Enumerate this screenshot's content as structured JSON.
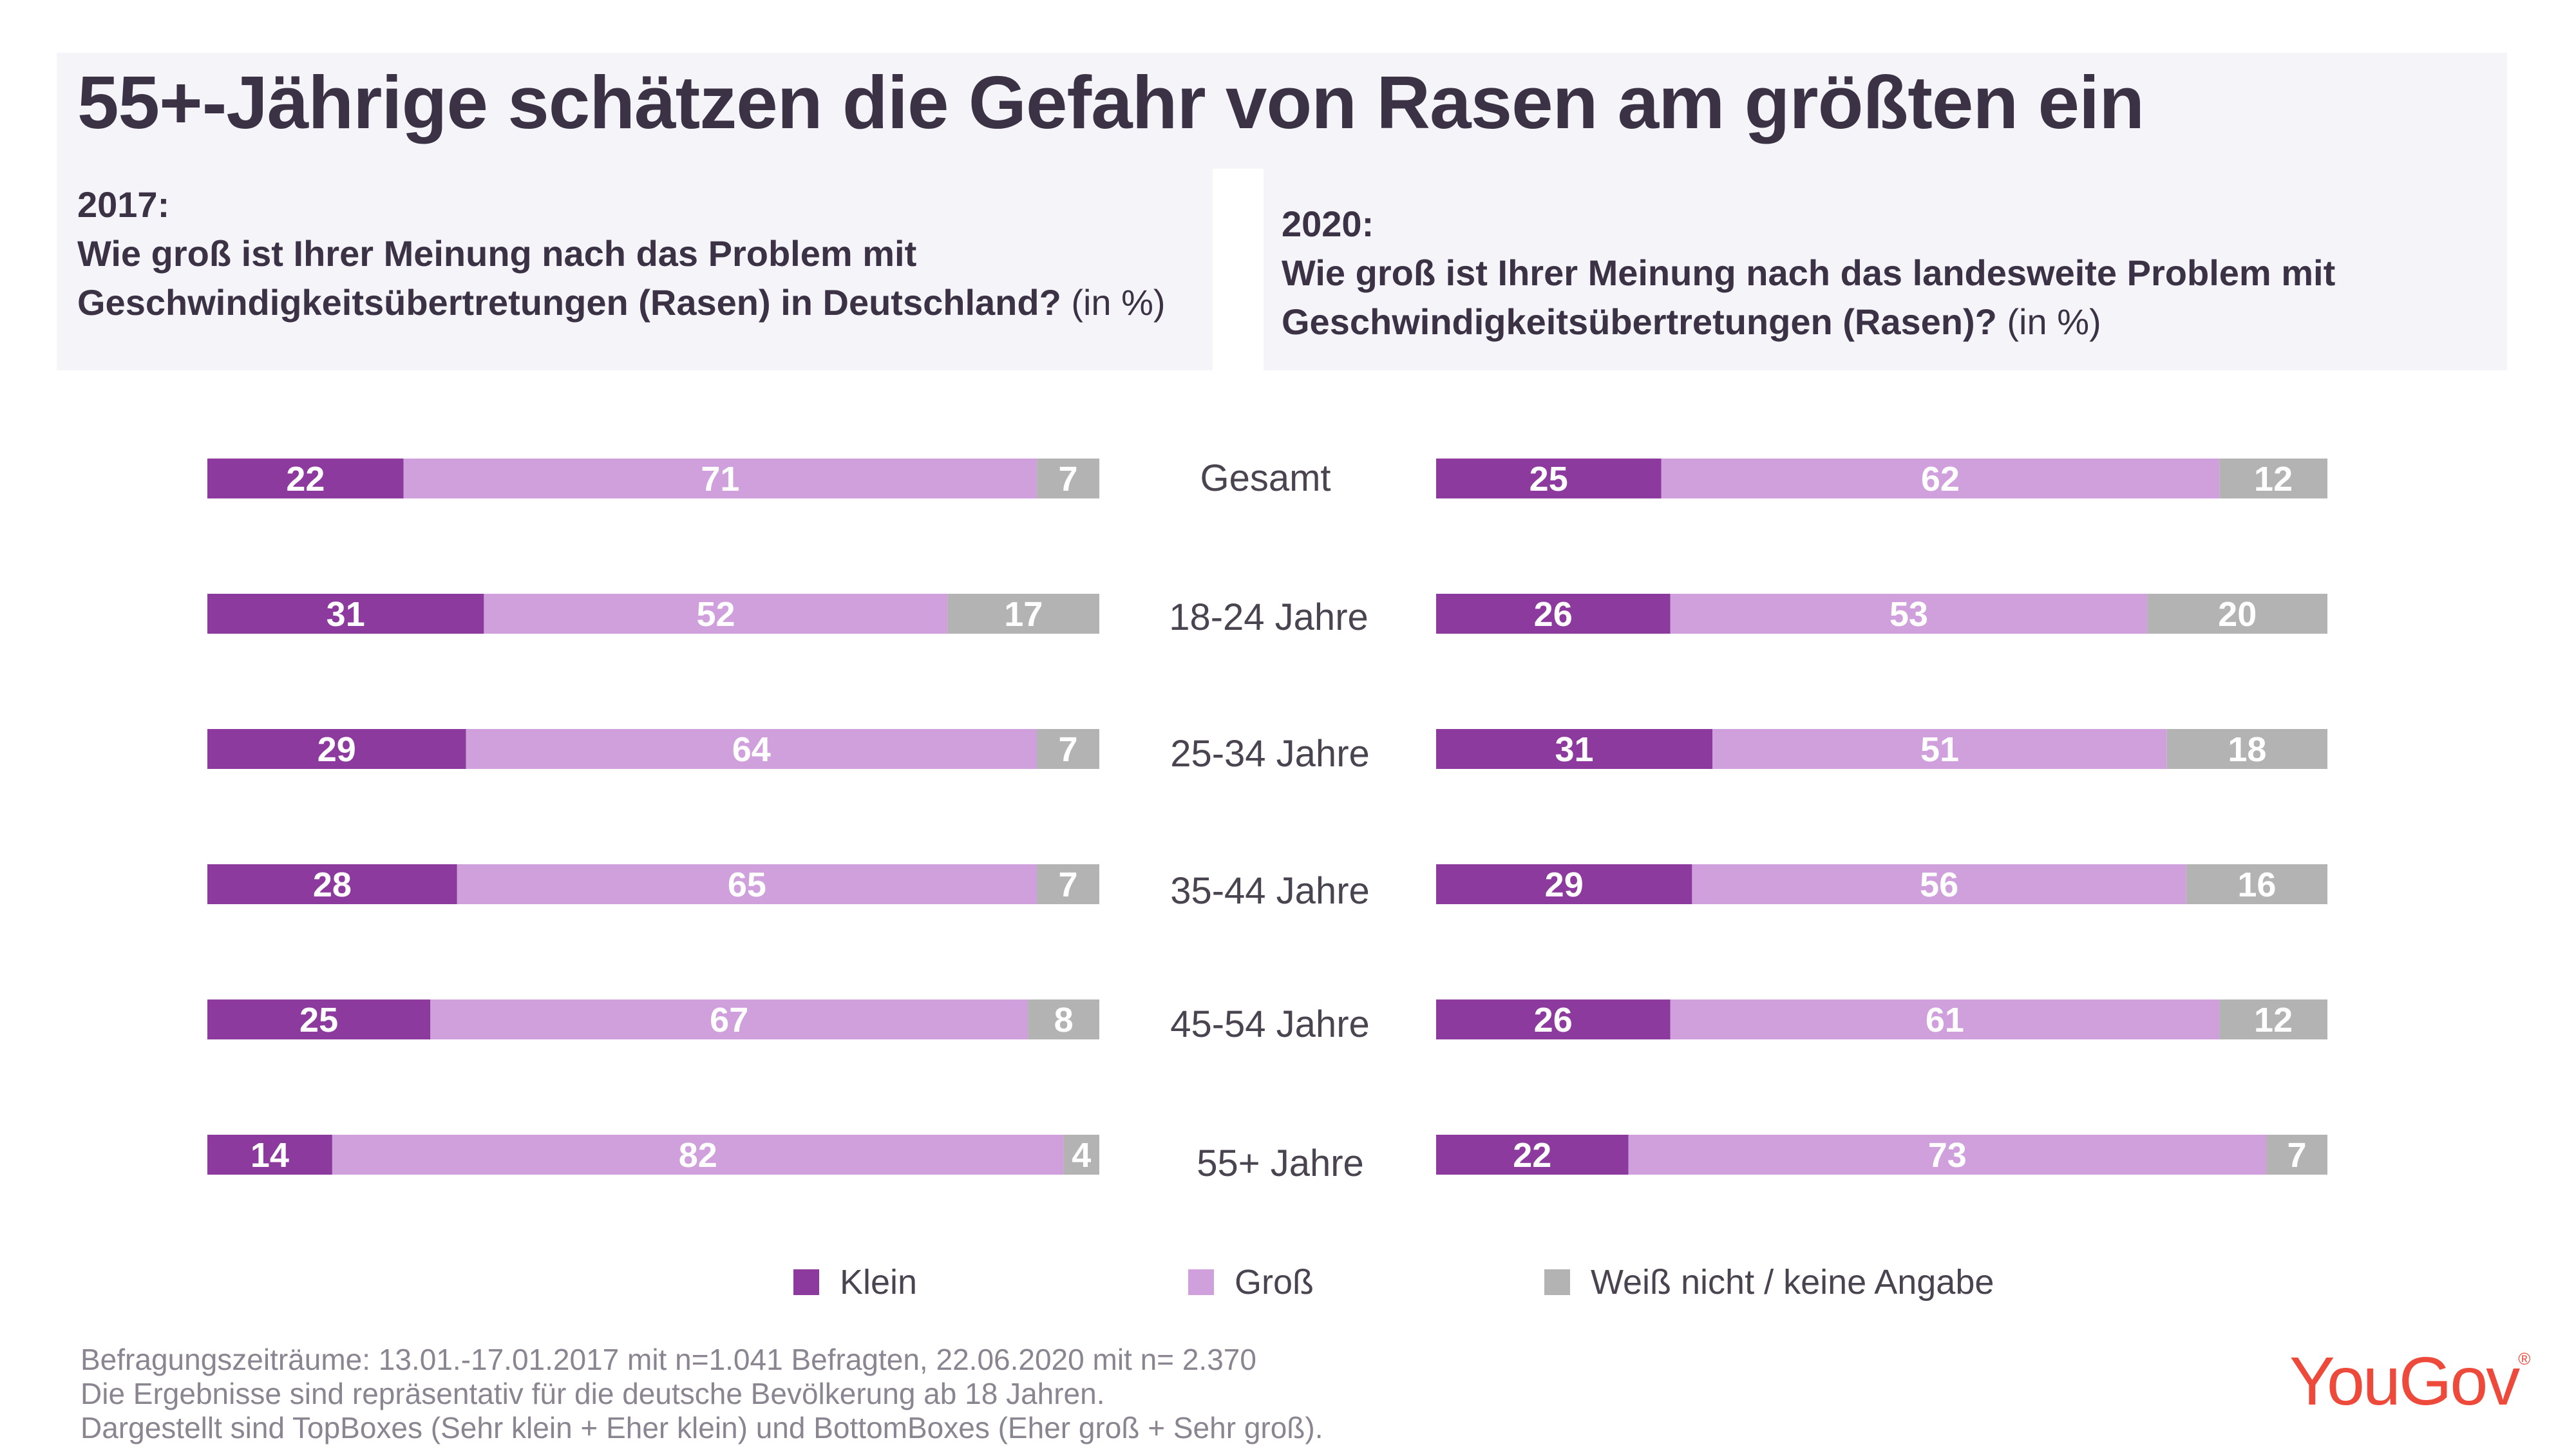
{
  "title": "55+-Jährige schätzen die Gefahr von Rasen am größten ein",
  "question_2017": {
    "year": "2017:",
    "text": "Wie groß ist Ihrer Meinung nach das Problem mit Geschwindigkeitsübertretungen (Rasen) in Deutschland?",
    "unit": "(in %)"
  },
  "question_2020": {
    "year": "2020:",
    "text": "Wie groß ist Ihrer Meinung nach das landesweite Problem mit Geschwindigkeitsübertretungen (Rasen)?",
    "unit": "(in %)"
  },
  "legend": {
    "klein": "Klein",
    "gross": "Groß",
    "weiss": "Weiß nicht / keine Angabe"
  },
  "colors": {
    "klein": "#8d3a9e",
    "gross": "#cfa0dc",
    "weiss": "#b3b3b3",
    "panel": "#f4f4f9",
    "brand": "#ee4a3b"
  },
  "footnotes": [
    "Befragungszeiträume: 13.01.-17.01.2017 mit n=1.041 Befragten, 22.06.2020 mit n= 2.370",
    "Die Ergebnisse sind repräsentativ für die deutsche Bevölkerung ab 18 Jahren.",
    "Dargestellt sind TopBoxes (Sehr klein + Eher klein) und BottomBoxes (Eher groß + Sehr groß)."
  ],
  "logo": {
    "text": "YouGov",
    "mark": "®"
  },
  "chart_data": {
    "type": "bar",
    "orientation": "horizontal",
    "stacked": true,
    "categories": [
      "Gesamt",
      "18-24 Jahre",
      "25-34 Jahre",
      "35-44 Jahre",
      "45-54 Jahre",
      "55+ Jahre"
    ],
    "series_names": [
      "Klein",
      "Groß",
      "Weiß nicht / keine Angabe"
    ],
    "panels": [
      {
        "name": "2017",
        "series": [
          {
            "name": "Klein",
            "values": [
              22,
              31,
              29,
              28,
              25,
              14
            ]
          },
          {
            "name": "Groß",
            "values": [
              71,
              52,
              64,
              65,
              67,
              82
            ]
          },
          {
            "name": "Weiß nicht / keine Angabe",
            "values": [
              7,
              17,
              7,
              7,
              8,
              4
            ]
          }
        ]
      },
      {
        "name": "2020",
        "series": [
          {
            "name": "Klein",
            "values": [
              25,
              26,
              31,
              29,
              26,
              22
            ]
          },
          {
            "name": "Groß",
            "values": [
              62,
              53,
              51,
              56,
              61,
              73
            ]
          },
          {
            "name": "Weiß nicht / keine Angabe",
            "values": [
              12,
              20,
              18,
              16,
              12,
              7
            ]
          }
        ]
      }
    ],
    "xlim": [
      0,
      100
    ],
    "legend_position": "bottom"
  }
}
